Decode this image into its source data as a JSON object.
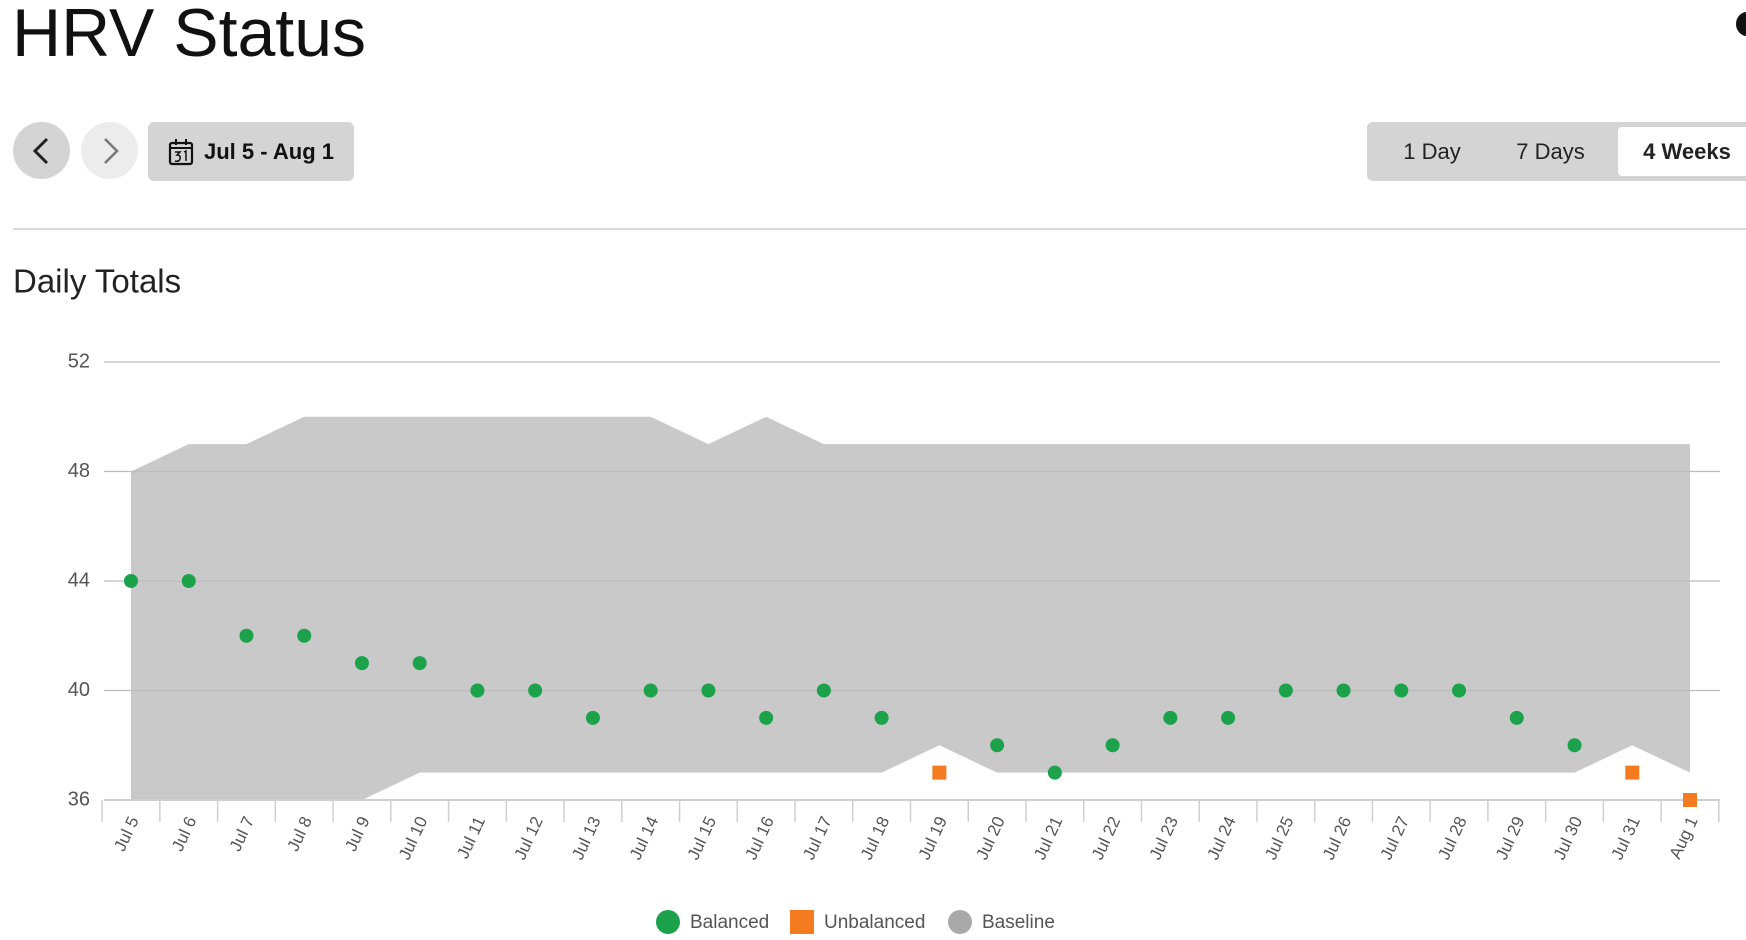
{
  "header": {
    "title": "HRV Status"
  },
  "nav": {
    "date_range": "Jul 5 - Aug 1",
    "ranges": [
      "1 Day",
      "7 Days",
      "4 Weeks"
    ]
  },
  "chart_data": {
    "type": "scatter",
    "title": "Daily Totals",
    "categories": [
      "Jul 5",
      "Jul 6",
      "Jul 7",
      "Jul 8",
      "Jul 9",
      "Jul 10",
      "Jul 11",
      "Jul 12",
      "Jul 13",
      "Jul 14",
      "Jul 15",
      "Jul 16",
      "Jul 17",
      "Jul 18",
      "Jul 19",
      "Jul 20",
      "Jul 21",
      "Jul 22",
      "Jul 23",
      "Jul 24",
      "Jul 25",
      "Jul 26",
      "Jul 27",
      "Jul 28",
      "Jul 29",
      "Jul 30",
      "Jul 31",
      "Aug 1"
    ],
    "series": [
      {
        "name": "Balanced",
        "color": "#1ba24a",
        "marker": "circle",
        "values": [
          44,
          44,
          42,
          42,
          41,
          41,
          40,
          40,
          39,
          40,
          40,
          39,
          40,
          39,
          null,
          38,
          37,
          38,
          39,
          39,
          40,
          40,
          40,
          40,
          39,
          38,
          null,
          null
        ]
      },
      {
        "name": "Unbalanced",
        "color": "#f47b20",
        "marker": "square",
        "values": [
          null,
          null,
          null,
          null,
          null,
          null,
          null,
          null,
          null,
          null,
          null,
          null,
          null,
          null,
          37,
          null,
          null,
          null,
          null,
          null,
          null,
          null,
          null,
          null,
          null,
          null,
          37,
          36
        ]
      },
      {
        "name": "Baseline",
        "color": "#c9c9c9",
        "marker": "circle",
        "low": [
          36,
          36,
          36,
          36,
          36,
          37,
          37,
          37,
          37,
          37,
          37,
          37,
          37,
          37,
          38,
          37,
          37,
          37,
          37,
          37,
          37,
          37,
          37,
          37,
          37,
          37,
          38,
          37
        ],
        "high": [
          48,
          49,
          49,
          50,
          50,
          50,
          50,
          50,
          50,
          50,
          49,
          50,
          49,
          49,
          49,
          49,
          49,
          49,
          49,
          49,
          49,
          49,
          49,
          49,
          49,
          49,
          49,
          49
        ]
      }
    ],
    "ylim": [
      36,
      52
    ],
    "yticks": [
      36,
      40,
      44,
      48,
      52
    ],
    "grid": true
  }
}
